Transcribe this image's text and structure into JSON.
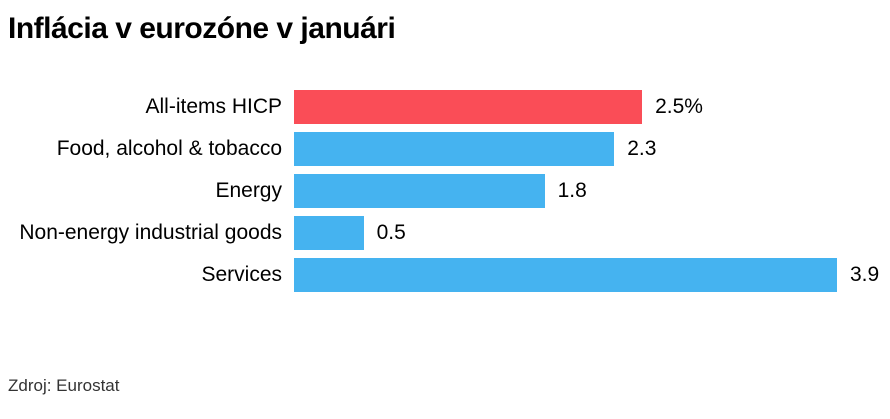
{
  "title": "Inflácia v eurozóne v januári",
  "source": "Zdroj: Eurostat",
  "colors": {
    "highlight_bar": "#FA4D57",
    "default_bar": "#45B3F0",
    "text": "#000000",
    "source_text": "#333333",
    "background": "#FFFFFF"
  },
  "chart_data": {
    "type": "bar",
    "orientation": "horizontal",
    "title": "Inflácia v eurozóne v januári",
    "categories": [
      "All-items HICP",
      "Food, alcohol & tobacco",
      "Energy",
      "Non-energy industrial goods",
      "Services"
    ],
    "values": [
      2.5,
      2.3,
      1.8,
      0.5,
      3.9
    ],
    "value_labels": [
      "2.5%",
      "2.3",
      "1.8",
      "0.5",
      "3.9"
    ],
    "unit": "%",
    "xlim": [
      0,
      3.9
    ],
    "highlight_index": 0,
    "grid": false,
    "legend": false,
    "axis_ticks": false,
    "source": "Zdroj: Eurostat"
  }
}
